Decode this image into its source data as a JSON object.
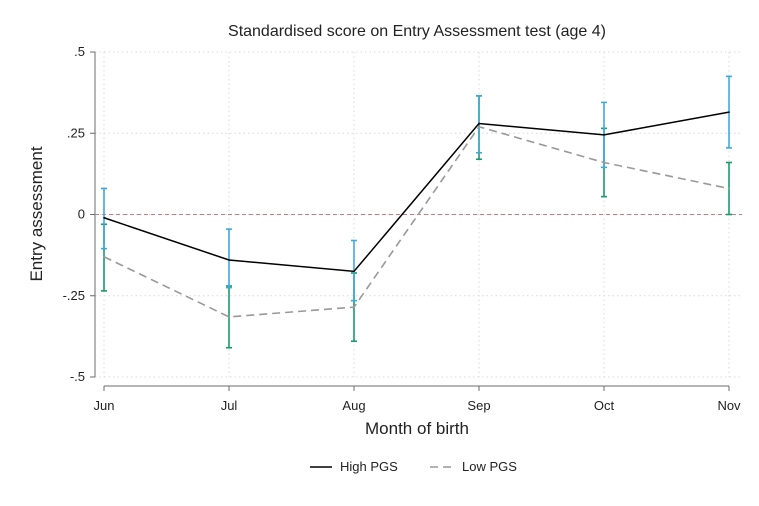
{
  "chart_data": {
    "type": "line",
    "title": "Standardised score on Entry Assessment test (age 4)",
    "xlabel": "Month of birth",
    "ylabel": "Entry assessment",
    "categories": [
      "Jun",
      "Jul",
      "Aug",
      "Sep",
      "Oct",
      "Nov"
    ],
    "ylim": [
      -0.5,
      0.5
    ],
    "yticks": [
      ".5",
      ".25",
      "0",
      "-.25",
      "-.5"
    ],
    "ytick_values": [
      0.5,
      0.25,
      0,
      -0.25,
      -0.5
    ],
    "grid": true,
    "reference_line": 0,
    "legend_position": "bottom",
    "series": [
      {
        "name": "High PGS",
        "values": [
          -0.01,
          -0.14,
          -0.175,
          0.28,
          0.245,
          0.315
        ],
        "ci_low": [
          -0.105,
          -0.225,
          -0.265,
          0.19,
          0.145,
          0.205
        ],
        "ci_high": [
          0.08,
          -0.045,
          -0.08,
          0.365,
          0.345,
          0.425
        ],
        "line_color": "#000000",
        "ci_color": "#3fa9dc",
        "dash": false
      },
      {
        "name": "Low PGS",
        "values": [
          -0.13,
          -0.315,
          -0.285,
          0.27,
          0.16,
          0.08
        ],
        "ci_low": [
          -0.235,
          -0.41,
          -0.39,
          0.17,
          0.055,
          0.0
        ],
        "ci_high": [
          -0.03,
          -0.22,
          -0.18,
          0.365,
          0.265,
          0.16
        ],
        "line_color": "#999999",
        "ci_color": "#1a9a6c",
        "dash": true
      }
    ]
  },
  "colors": {
    "reference_line": "#c97a85",
    "grid": "#d9d9d9",
    "axis": "#6b6b6b"
  }
}
